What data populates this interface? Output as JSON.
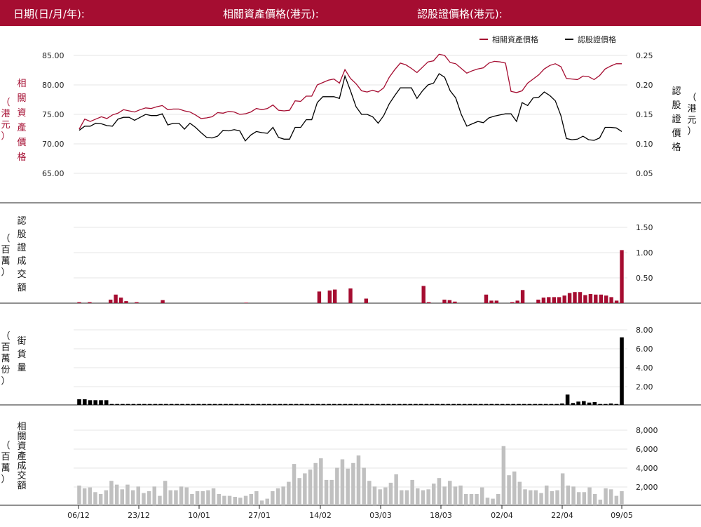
{
  "header": {
    "date_label": "日期(日/月/年):",
    "asset_price_label": "相關資產價格(港元):",
    "warrant_price_label": "認股證價格(港元):"
  },
  "colors": {
    "brand": "#a50d31",
    "asset_line": "#a50d31",
    "warrant_line": "#000000",
    "turnover_bar": "#a50d31",
    "outstanding_bar": "#000000",
    "asset_turnover_bar": "#c0c0c0"
  },
  "chart_data": [
    {
      "type": "line",
      "legend": [
        "相關資產價格",
        "認股證價格"
      ],
      "legend_position": "top-right",
      "left_axis_label": [
        "（",
        "港",
        "元",
        "）",
        "相",
        "關",
        "資",
        "產",
        "價",
        "格"
      ],
      "right_axis_label": [
        "認",
        "股",
        "證",
        "價",
        "格",
        "（",
        "港",
        "元",
        "）"
      ],
      "left_ticks": [
        "85.00",
        "80.00",
        "75.00",
        "70.00",
        "65.00"
      ],
      "right_ticks": [
        "0.25",
        "0.20",
        "0.15",
        "0.10",
        "0.05"
      ],
      "y_left_range": [
        60,
        87
      ],
      "y_right_range": [
        0.0,
        0.27
      ],
      "grid": true,
      "series": [
        {
          "name": "相關資產價格",
          "axis": "left",
          "values": [
            72.5,
            74.2,
            73.8,
            74.2,
            74.6,
            74.3,
            74.9,
            75.2,
            75.8,
            75.6,
            75.4,
            75.8,
            76.1,
            76.0,
            76.3,
            76.5,
            75.8,
            75.9,
            75.9,
            75.6,
            75.4,
            74.9,
            74.3,
            74.4,
            74.6,
            75.3,
            75.2,
            75.5,
            75.4,
            75.0,
            75.1,
            75.4,
            76.0,
            75.8,
            76.0,
            76.6,
            75.7,
            75.6,
            75.7,
            77.3,
            77.2,
            78.1,
            78.1,
            80.0,
            80.4,
            80.8,
            81.0,
            80.3,
            82.6,
            81.1,
            80.2,
            79.0,
            78.8,
            79.1,
            78.8,
            79.5,
            81.3,
            82.6,
            83.7,
            83.4,
            82.8,
            82.1,
            83.0,
            83.9,
            84.1,
            85.2,
            85.0,
            83.8,
            83.6,
            82.8,
            82.0,
            82.4,
            82.7,
            82.9,
            83.7,
            84.0,
            83.9,
            83.7,
            78.9,
            78.7,
            79.0,
            80.3,
            81.0,
            81.7,
            82.7,
            83.3,
            83.6,
            83.1,
            81.1,
            81.0,
            80.9,
            81.5,
            81.4,
            80.9,
            81.6,
            82.7,
            83.2,
            83.6,
            83.6
          ]
        },
        {
          "name": "認股證價格",
          "axis": "right",
          "values": [
            0.123,
            0.13,
            0.13,
            0.135,
            0.134,
            0.131,
            0.13,
            0.142,
            0.145,
            0.145,
            0.14,
            0.145,
            0.15,
            0.148,
            0.148,
            0.151,
            0.132,
            0.135,
            0.135,
            0.125,
            0.135,
            0.128,
            0.119,
            0.111,
            0.11,
            0.113,
            0.123,
            0.122,
            0.124,
            0.122,
            0.105,
            0.115,
            0.121,
            0.119,
            0.118,
            0.128,
            0.111,
            0.108,
            0.108,
            0.128,
            0.128,
            0.141,
            0.141,
            0.17,
            0.18,
            0.18,
            0.18,
            0.177,
            0.215,
            0.19,
            0.163,
            0.15,
            0.15,
            0.146,
            0.135,
            0.148,
            0.168,
            0.182,
            0.195,
            0.195,
            0.195,
            0.177,
            0.19,
            0.2,
            0.203,
            0.219,
            0.213,
            0.19,
            0.178,
            0.15,
            0.13,
            0.134,
            0.138,
            0.136,
            0.144,
            0.147,
            0.149,
            0.151,
            0.151,
            0.138,
            0.17,
            0.165,
            0.178,
            0.179,
            0.188,
            0.182,
            0.173,
            0.148,
            0.109,
            0.107,
            0.108,
            0.113,
            0.107,
            0.106,
            0.11,
            0.128,
            0.128,
            0.127,
            0.121
          ]
        }
      ]
    },
    {
      "type": "bar",
      "series_name": "認股證成交額",
      "left_axis_label": [
        "（",
        "百",
        "萬",
        "）"
      ],
      "left_axis_label2": [
        "認",
        "股",
        "證",
        "成",
        "交",
        "額"
      ],
      "ticks": [
        "1.50",
        "1.00",
        "0.50"
      ],
      "y_range": [
        0,
        1.5
      ],
      "grid": true,
      "values": [
        0.02,
        0,
        0.02,
        0,
        0,
        0,
        0.07,
        0.17,
        0.11,
        0.04,
        0,
        0.02,
        0,
        0,
        0,
        0,
        0.06,
        0,
        0,
        0,
        0,
        0,
        0,
        0,
        0,
        0,
        0,
        0,
        0,
        0,
        0,
        0,
        0.01,
        0,
        0,
        0,
        0,
        0,
        0,
        0,
        0,
        0,
        0,
        0,
        0,
        0,
        0.23,
        0,
        0.25,
        0.27,
        0,
        0,
        0.29,
        0,
        0,
        0.09,
        0,
        0,
        0,
        0,
        0,
        0,
        0,
        0,
        0,
        0,
        0.34,
        0.02,
        0,
        0,
        0.07,
        0.06,
        0.03,
        0,
        0,
        0,
        0,
        0,
        0.17,
        0.05,
        0.05,
        0,
        0,
        0.02,
        0.05,
        0.26,
        0,
        0,
        0.07,
        0.11,
        0.12,
        0.12,
        0.12,
        0.15,
        0.2,
        0.22,
        0.22,
        0.16,
        0.18,
        0.17,
        0.17,
        0.15,
        0.12,
        0.05,
        1.05
      ]
    },
    {
      "type": "bar",
      "series_name": "街貨量",
      "left_axis_label": [
        "（",
        "百",
        "萬",
        "份",
        "）"
      ],
      "left_axis_label2": [
        "街",
        "貨",
        "量"
      ],
      "ticks": [
        "8.00",
        "6.00",
        "4.00",
        "2.00"
      ],
      "y_range": [
        0,
        8.5
      ],
      "grid": true,
      "values": [
        0.6,
        0.6,
        0.5,
        0.5,
        0.5,
        0.5,
        0.1,
        0.1,
        0.1,
        0.1,
        0.1,
        0.1,
        0.1,
        0.1,
        0.1,
        0.1,
        0.1,
        0.1,
        0.1,
        0.1,
        0.1,
        0.1,
        0.1,
        0.1,
        0.1,
        0.1,
        0.1,
        0.1,
        0.1,
        0.1,
        0.1,
        0.1,
        0.1,
        0.1,
        0.1,
        0.1,
        0.1,
        0.1,
        0.1,
        0.1,
        0.1,
        0.1,
        0.1,
        0.1,
        0.1,
        0.1,
        0.1,
        0.1,
        0.1,
        0.1,
        0.1,
        0.1,
        0.1,
        0.1,
        0.1,
        0.1,
        0.1,
        0.1,
        0.1,
        0.1,
        0.1,
        0.1,
        0.1,
        0.1,
        0.1,
        0.1,
        0.1,
        0.1,
        0.1,
        0.1,
        0.1,
        0.1,
        0.1,
        0.1,
        0.1,
        0.1,
        0.1,
        0.1,
        0.1,
        0.1,
        0.1,
        0.1,
        0.1,
        0.1,
        0.1,
        0.1,
        0.1,
        0.1,
        0.1,
        0.15,
        1.1,
        0.2,
        0.35,
        0.4,
        0.25,
        0.3,
        0.1,
        0.1,
        0.15,
        0.1,
        7.2
      ]
    },
    {
      "type": "bar",
      "series_name": "相關資產成交額",
      "left_axis_label": [
        "（",
        "百",
        "萬",
        "）"
      ],
      "left_axis_label2": [
        "相",
        "關",
        "資",
        "產",
        "成",
        "交",
        "額"
      ],
      "ticks": [
        "8,000",
        "6,000",
        "4,000",
        "2,000"
      ],
      "y_range": [
        0,
        9000
      ],
      "grid": true,
      "x_tick_labels": [
        "06/12",
        "23/12",
        "10/01",
        "27/01",
        "14/02",
        "03/03",
        "18/03",
        "02/04",
        "22/04",
        "09/05"
      ],
      "values": [
        2100,
        1800,
        1900,
        1400,
        1200,
        1600,
        2600,
        2200,
        1700,
        2200,
        1600,
        2000,
        1300,
        1500,
        2000,
        1000,
        2600,
        1600,
        1600,
        2000,
        1900,
        1200,
        1500,
        1500,
        1600,
        1800,
        1200,
        1000,
        1000,
        900,
        800,
        1000,
        1200,
        1500,
        500,
        700,
        1500,
        1800,
        2000,
        2500,
        4400,
        2900,
        3400,
        3800,
        4500,
        5000,
        2700,
        2700,
        4000,
        4900,
        3900,
        4500,
        5300,
        4000,
        2600,
        2000,
        1700,
        1900,
        2400,
        3300,
        1600,
        1600,
        2700,
        1800,
        1600,
        1700,
        2300,
        2900,
        2000,
        2600,
        2000,
        2100,
        1200,
        1200,
        1200,
        1900,
        800,
        700,
        1200,
        6300,
        3200,
        3600,
        2500,
        1700,
        1600,
        1600,
        1300,
        2100,
        1500,
        1600,
        3400,
        2100,
        2000,
        1400,
        1400,
        1900,
        1200,
        600,
        1800,
        1700,
        1000,
        1500
      ]
    }
  ]
}
